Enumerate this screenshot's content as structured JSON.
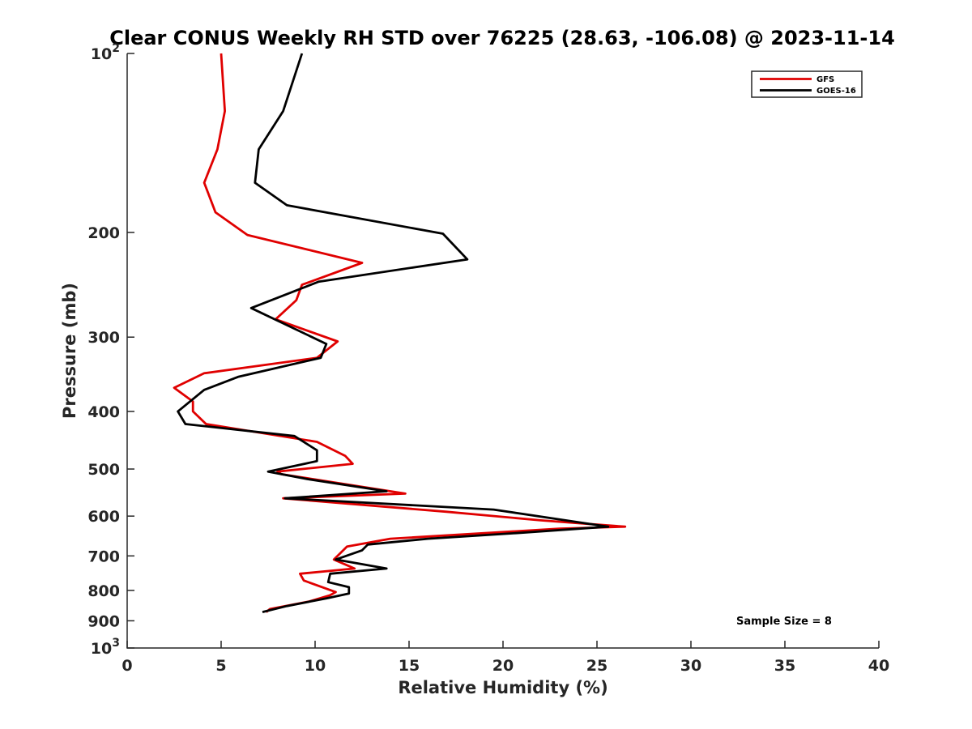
{
  "chart_data": {
    "type": "line",
    "orientation": "profile",
    "title": "Clear CONUS Weekly RH STD over 76225 (28.63, -106.08) @ 2023-11-14",
    "xlabel": "Relative Humidity (%)",
    "ylabel": "Pressure (mb)",
    "xlim": [
      0,
      40
    ],
    "ylim": [
      100,
      1000
    ],
    "yscale": "log",
    "yreversed": true,
    "grid": false,
    "legend_position": "top-right",
    "x_ticks": [
      {
        "value": 0,
        "label": "0"
      },
      {
        "value": 5,
        "label": "5"
      },
      {
        "value": 10,
        "label": "10"
      },
      {
        "value": 15,
        "label": "15"
      },
      {
        "value": 20,
        "label": "20"
      },
      {
        "value": 25,
        "label": "25"
      },
      {
        "value": 30,
        "label": "30"
      },
      {
        "value": 35,
        "label": "35"
      },
      {
        "value": 40,
        "label": "40"
      }
    ],
    "y_ticks": [
      {
        "value": 200,
        "label": "200"
      },
      {
        "value": 300,
        "label": "300"
      },
      {
        "value": 400,
        "label": "400"
      },
      {
        "value": 500,
        "label": "500"
      },
      {
        "value": 600,
        "label": "600"
      },
      {
        "value": 700,
        "label": "700"
      },
      {
        "value": 800,
        "label": "800"
      },
      {
        "value": 900,
        "label": "900"
      }
    ],
    "y_tick_powers": [
      {
        "value": 100,
        "base": "10",
        "exp": "2"
      },
      {
        "value": 1000,
        "base": "10",
        "exp": "3"
      }
    ],
    "annotation": "Sample Size = 8",
    "series": [
      {
        "name": "GFS",
        "color": "#e00000",
        "points": [
          [
            5.0,
            100
          ],
          [
            5.2,
            125
          ],
          [
            4.8,
            145
          ],
          [
            4.1,
            165
          ],
          [
            4.7,
            185
          ],
          [
            6.4,
            202
          ],
          [
            12.5,
            225
          ],
          [
            9.3,
            245
          ],
          [
            9.0,
            260
          ],
          [
            7.9,
            280
          ],
          [
            11.2,
            305
          ],
          [
            10.1,
            325
          ],
          [
            4.1,
            345
          ],
          [
            2.5,
            365
          ],
          [
            3.5,
            385
          ],
          [
            3.5,
            400
          ],
          [
            4.2,
            420
          ],
          [
            10.1,
            450
          ],
          [
            11.6,
            475
          ],
          [
            12.0,
            490
          ],
          [
            8.0,
            505
          ],
          [
            8.2,
            510
          ],
          [
            14.8,
            550
          ],
          [
            8.3,
            560
          ],
          [
            17.0,
            590
          ],
          [
            22.0,
            610
          ],
          [
            26.5,
            625
          ],
          [
            23.0,
            630
          ],
          [
            14.0,
            655
          ],
          [
            11.7,
            675
          ],
          [
            11.0,
            710
          ],
          [
            12.1,
            735
          ],
          [
            9.2,
            750
          ],
          [
            9.4,
            770
          ],
          [
            11.1,
            805
          ],
          [
            10.8,
            815
          ],
          [
            9.7,
            835
          ],
          [
            7.6,
            860
          ],
          [
            7.4,
            870
          ]
        ]
      },
      {
        "name": "GOES-16",
        "color": "#000000",
        "points": [
          [
            9.3,
            100
          ],
          [
            8.3,
            125
          ],
          [
            7.0,
            145
          ],
          [
            6.8,
            165
          ],
          [
            8.5,
            180
          ],
          [
            16.8,
            201
          ],
          [
            18.1,
            222
          ],
          [
            10.2,
            242
          ],
          [
            6.6,
            268
          ],
          [
            10.6,
            308
          ],
          [
            10.3,
            325
          ],
          [
            5.9,
            350
          ],
          [
            4.1,
            368
          ],
          [
            2.7,
            400
          ],
          [
            3.1,
            420
          ],
          [
            8.9,
            440
          ],
          [
            10.1,
            465
          ],
          [
            10.1,
            485
          ],
          [
            7.5,
            505
          ],
          [
            9.6,
            520
          ],
          [
            13.8,
            545
          ],
          [
            8.4,
            560
          ],
          [
            19.5,
            585
          ],
          [
            25.6,
            625
          ],
          [
            21.0,
            640
          ],
          [
            16.0,
            655
          ],
          [
            12.8,
            670
          ],
          [
            12.5,
            685
          ],
          [
            11.1,
            710
          ],
          [
            13.8,
            735
          ],
          [
            10.8,
            750
          ],
          [
            10.7,
            775
          ],
          [
            11.8,
            790
          ],
          [
            11.8,
            810
          ],
          [
            10.6,
            825
          ],
          [
            8.5,
            850
          ],
          [
            7.2,
            870
          ]
        ]
      }
    ]
  }
}
